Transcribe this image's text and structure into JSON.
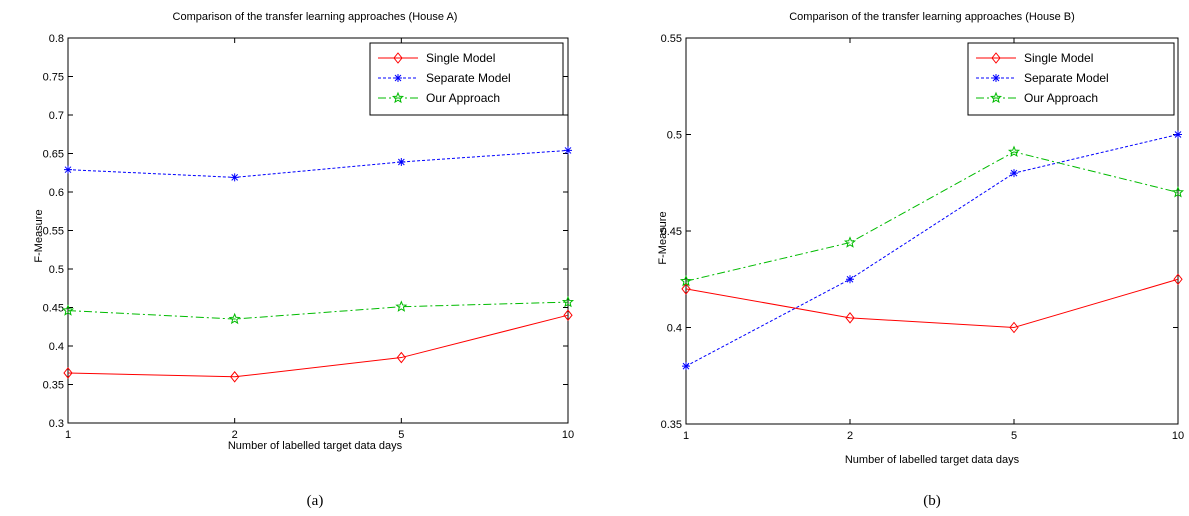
{
  "chart_data": [
    {
      "type": "line",
      "title": "Comparison of the transfer learning approaches (House A)",
      "xlabel": "Number of labelled target data days",
      "ylabel": "F-Measure",
      "categories": [
        "1",
        "2",
        "5",
        "10"
      ],
      "ylim": [
        0.3,
        0.8
      ],
      "yticks": [
        "0.3",
        "0.35",
        "0.4",
        "0.45",
        "0.5",
        "0.55",
        "0.6",
        "0.65",
        "0.7",
        "0.75",
        "0.8"
      ],
      "legend_position": "top-right",
      "grid": false,
      "caption": "(a)",
      "series": [
        {
          "name": "Single Model",
          "values": [
            0.365,
            0.36,
            0.385,
            0.44
          ],
          "color": "#ff0000",
          "dash": "solid",
          "marker": "diamond"
        },
        {
          "name": "Separate Model",
          "values": [
            0.629,
            0.619,
            0.639,
            0.654
          ],
          "color": "#0000ff",
          "dash": "dotted",
          "marker": "asterisk"
        },
        {
          "name": "Our Approach",
          "values": [
            0.446,
            0.435,
            0.451,
            0.457
          ],
          "color": "#00bb00",
          "dash": "dashdot",
          "marker": "star"
        }
      ]
    },
    {
      "type": "line",
      "title": "Comparison of the transfer learning approaches (House B)",
      "xlabel": "Number of labelled target data days",
      "ylabel": "F-Measure",
      "categories": [
        "1",
        "2",
        "5",
        "10"
      ],
      "ylim": [
        0.35,
        0.55
      ],
      "yticks": [
        "0.35",
        "0.4",
        "0.45",
        "0.5",
        "0.55"
      ],
      "legend_position": "top-right",
      "grid": false,
      "caption": "(b)",
      "series": [
        {
          "name": "Single Model",
          "values": [
            0.42,
            0.405,
            0.4,
            0.425
          ],
          "color": "#ff0000",
          "dash": "solid",
          "marker": "diamond"
        },
        {
          "name": "Separate Model",
          "values": [
            0.38,
            0.425,
            0.48,
            0.5
          ],
          "color": "#0000ff",
          "dash": "dotted",
          "marker": "asterisk"
        },
        {
          "name": "Our Approach",
          "values": [
            0.424,
            0.444,
            0.491,
            0.47
          ],
          "color": "#00bb00",
          "dash": "dashdot",
          "marker": "star"
        }
      ]
    }
  ]
}
